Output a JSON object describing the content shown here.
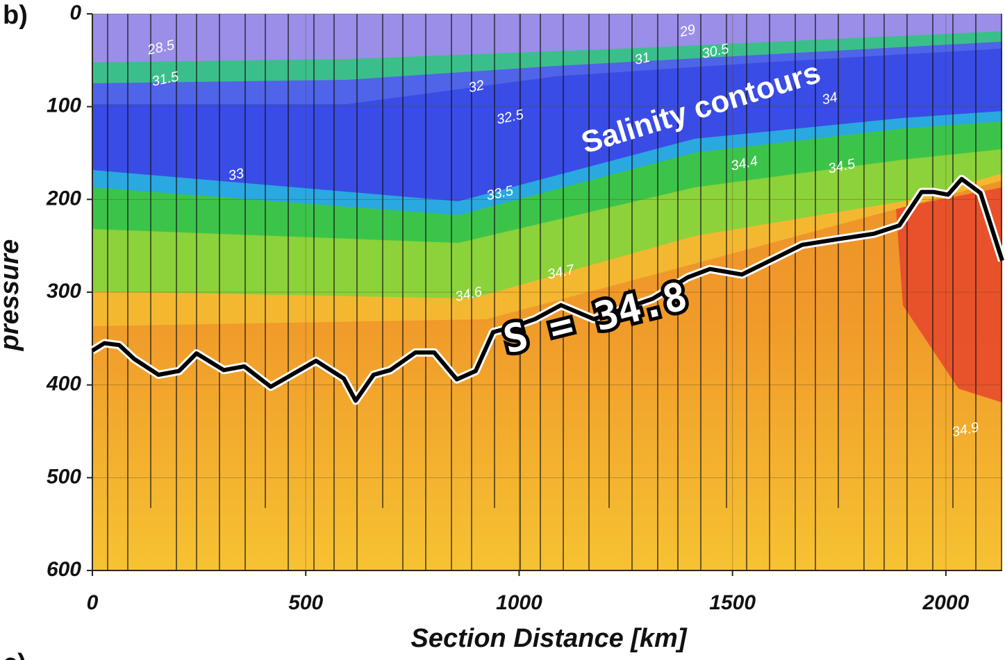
{
  "chart_data": {
    "type": "line",
    "panel_label": "b)",
    "next_panel_label": "c)",
    "xlabel": "Section Distance [km]",
    "ylabel": "pressure",
    "callout": "Salinity contours",
    "line_label": "S = 34.8",
    "x": [
      0,
      28,
      63,
      98,
      155,
      203,
      244,
      308,
      356,
      418,
      524,
      589,
      617,
      659,
      698,
      757,
      801,
      854,
      898,
      939,
      988,
      1037,
      1098,
      1175,
      1313,
      1395,
      1447,
      1522,
      1663,
      1745,
      1831,
      1891,
      1943,
      1971,
      2005,
      2037,
      2081,
      2132
    ],
    "values": [
      363,
      355,
      357,
      372,
      389,
      385,
      366,
      384,
      380,
      402,
      374,
      393,
      417,
      389,
      384,
      365,
      365,
      394,
      385,
      343,
      337,
      329,
      314,
      329,
      307,
      284,
      275,
      281,
      249,
      243,
      237,
      228,
      192,
      192,
      195,
      178,
      193,
      266
    ],
    "color": "#000000",
    "xlim": [
      0,
      2132
    ],
    "ylim": [
      600,
      0
    ],
    "xticks": [
      0,
      500,
      1000,
      1500,
      2000
    ],
    "yticks": [
      0,
      100,
      200,
      300,
      400,
      500,
      600
    ],
    "grid": true,
    "contour_labels": [
      {
        "text": "28.5",
        "x": 161,
        "y": 37
      },
      {
        "text": "31.5",
        "x": 171,
        "y": 71
      },
      {
        "text": "32",
        "x": 900,
        "y": 79
      },
      {
        "text": "32.5",
        "x": 979,
        "y": 112
      },
      {
        "text": "33",
        "x": 337,
        "y": 174
      },
      {
        "text": "33.5",
        "x": 955,
        "y": 194
      },
      {
        "text": "34",
        "x": 1728,
        "y": 92
      },
      {
        "text": "34.4",
        "x": 1528,
        "y": 162
      },
      {
        "text": "34.5",
        "x": 1756,
        "y": 165
      },
      {
        "text": "34.6",
        "x": 882,
        "y": 303
      },
      {
        "text": "34.7",
        "x": 1098,
        "y": 279
      },
      {
        "text": "34.9",
        "x": 2046,
        "y": 449
      },
      {
        "text": "29",
        "x": 1395,
        "y": 19
      },
      {
        "text": "31",
        "x": 1289,
        "y": 49
      },
      {
        "text": "30.5",
        "x": 1460,
        "y": 41
      }
    ]
  }
}
